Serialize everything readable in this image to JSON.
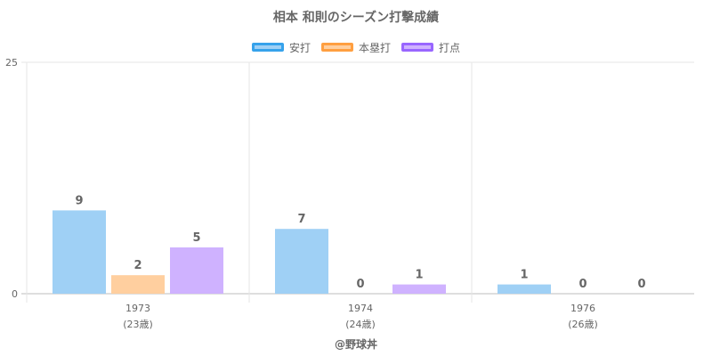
{
  "chart_data": {
    "type": "bar",
    "title": "相本 和則のシーズン打撃成績",
    "categories": [
      "1973",
      "1974",
      "1976"
    ],
    "category_sublabels": [
      "(23歳)",
      "(24歳)",
      "(26歳)"
    ],
    "series": [
      {
        "name": "安打",
        "values": [
          9,
          7,
          1
        ],
        "fill": "#9fd0f5",
        "border": "#36a2eb"
      },
      {
        "name": "本塁打",
        "values": [
          2,
          0,
          0
        ],
        "fill": "#ffcf9f",
        "border": "#ff9f40"
      },
      {
        "name": "打点",
        "values": [
          5,
          1,
          0
        ],
        "fill": "#cfb2ff",
        "border": "#9966ff"
      }
    ],
    "yticks": [
      0,
      25
    ],
    "ylim": [
      0,
      25
    ],
    "legend_position": "top",
    "grid": true
  },
  "footer": {
    "credit": "@野球丼"
  }
}
